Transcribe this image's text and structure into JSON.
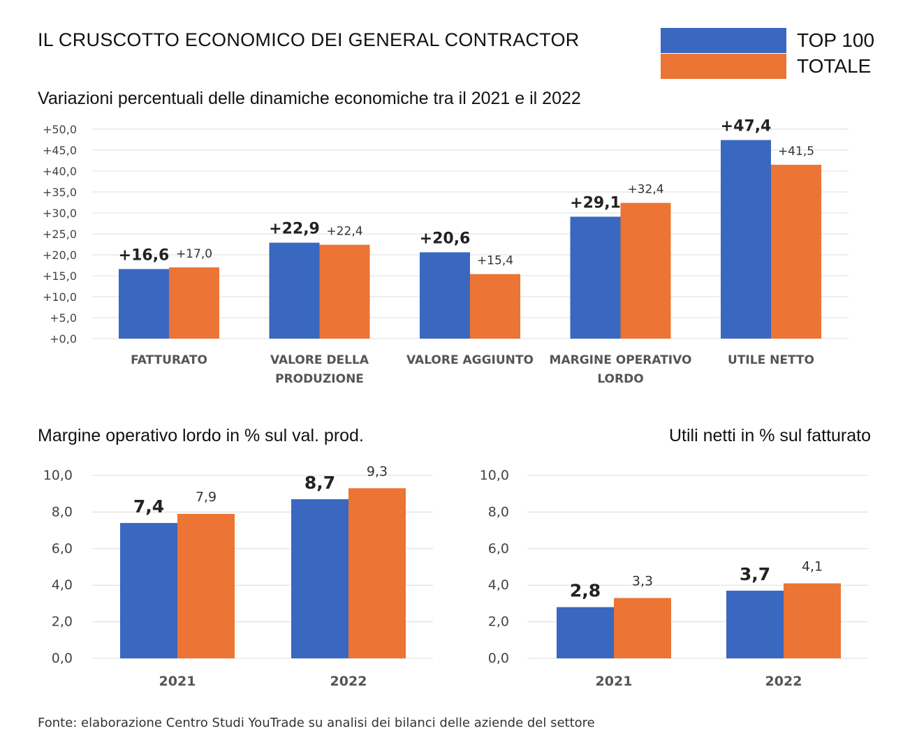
{
  "header": {
    "title": "IL CRUSCOTTO ECONOMICO DEI GENERAL CONTRACTOR"
  },
  "legend": [
    {
      "label": "TOP 100",
      "color": "#3a67c0"
    },
    {
      "label": "TOTALE",
      "color": "#ec7434"
    }
  ],
  "colors": {
    "top100": "#3a67c0",
    "totale": "#ec7434",
    "grid": "#dcdcdc"
  },
  "chart_data": [
    {
      "type": "bar",
      "title": "Variazioni percentuali delle dinamiche economiche tra il 2021 e il 2022",
      "categories": [
        [
          "FATTURATO"
        ],
        [
          "VALORE DELLA",
          "PRODUZIONE"
        ],
        [
          "VALORE AGGIUNTO"
        ],
        [
          "MARGINE OPERATIVO",
          "LORDO"
        ],
        [
          "UTILE NETTO"
        ]
      ],
      "series": [
        {
          "name": "TOP 100",
          "values": [
            16.6,
            22.9,
            20.6,
            29.1,
            47.4
          ],
          "labels": [
            "+16,6",
            "+22,9",
            "+20,6",
            "+29,1",
            "+47,4"
          ]
        },
        {
          "name": "TOTALE",
          "values": [
            17.0,
            22.4,
            15.4,
            32.4,
            41.5
          ],
          "labels": [
            "+17,0",
            "+22,4",
            "+15,4",
            "+32,4",
            "+41,5"
          ]
        }
      ],
      "ylim": [
        0,
        50
      ],
      "yticks": [
        "+0,0",
        "+5,0",
        "+10,0",
        "+15,0",
        "+20,0",
        "+25,0",
        "+30,0",
        "+35,0",
        "+40,0",
        "+45,0",
        "+50,0"
      ],
      "grid": true
    },
    {
      "type": "bar",
      "title": "Margine operativo lordo in % sul val. prod.",
      "categories": [
        [
          "2021"
        ],
        [
          "2022"
        ]
      ],
      "series": [
        {
          "name": "TOP 100",
          "values": [
            7.4,
            8.7
          ],
          "labels": [
            "7,4",
            "8,7"
          ]
        },
        {
          "name": "TOTALE",
          "values": [
            7.9,
            9.3
          ],
          "labels": [
            "7,9",
            "9,3"
          ]
        }
      ],
      "ylim": [
        0,
        10
      ],
      "yticks": [
        "0,0",
        "2,0",
        "4,0",
        "6,0",
        "8,0",
        "10,0"
      ],
      "grid": true
    },
    {
      "type": "bar",
      "title": "Utili netti in % sul fatturato",
      "categories": [
        [
          "2021"
        ],
        [
          "2022"
        ]
      ],
      "series": [
        {
          "name": "TOP 100",
          "values": [
            2.8,
            3.7
          ],
          "labels": [
            "2,8",
            "3,7"
          ]
        },
        {
          "name": "TOTALE",
          "values": [
            3.3,
            4.1
          ],
          "labels": [
            "3,3",
            "4,1"
          ]
        }
      ],
      "ylim": [
        0,
        10
      ],
      "yticks": [
        "0,0",
        "2,0",
        "4,0",
        "6,0",
        "8,0",
        "10,0"
      ],
      "grid": true
    }
  ],
  "source": "Fonte: elaborazione Centro Studi YouTrade su analisi dei bilanci delle aziende del settore"
}
